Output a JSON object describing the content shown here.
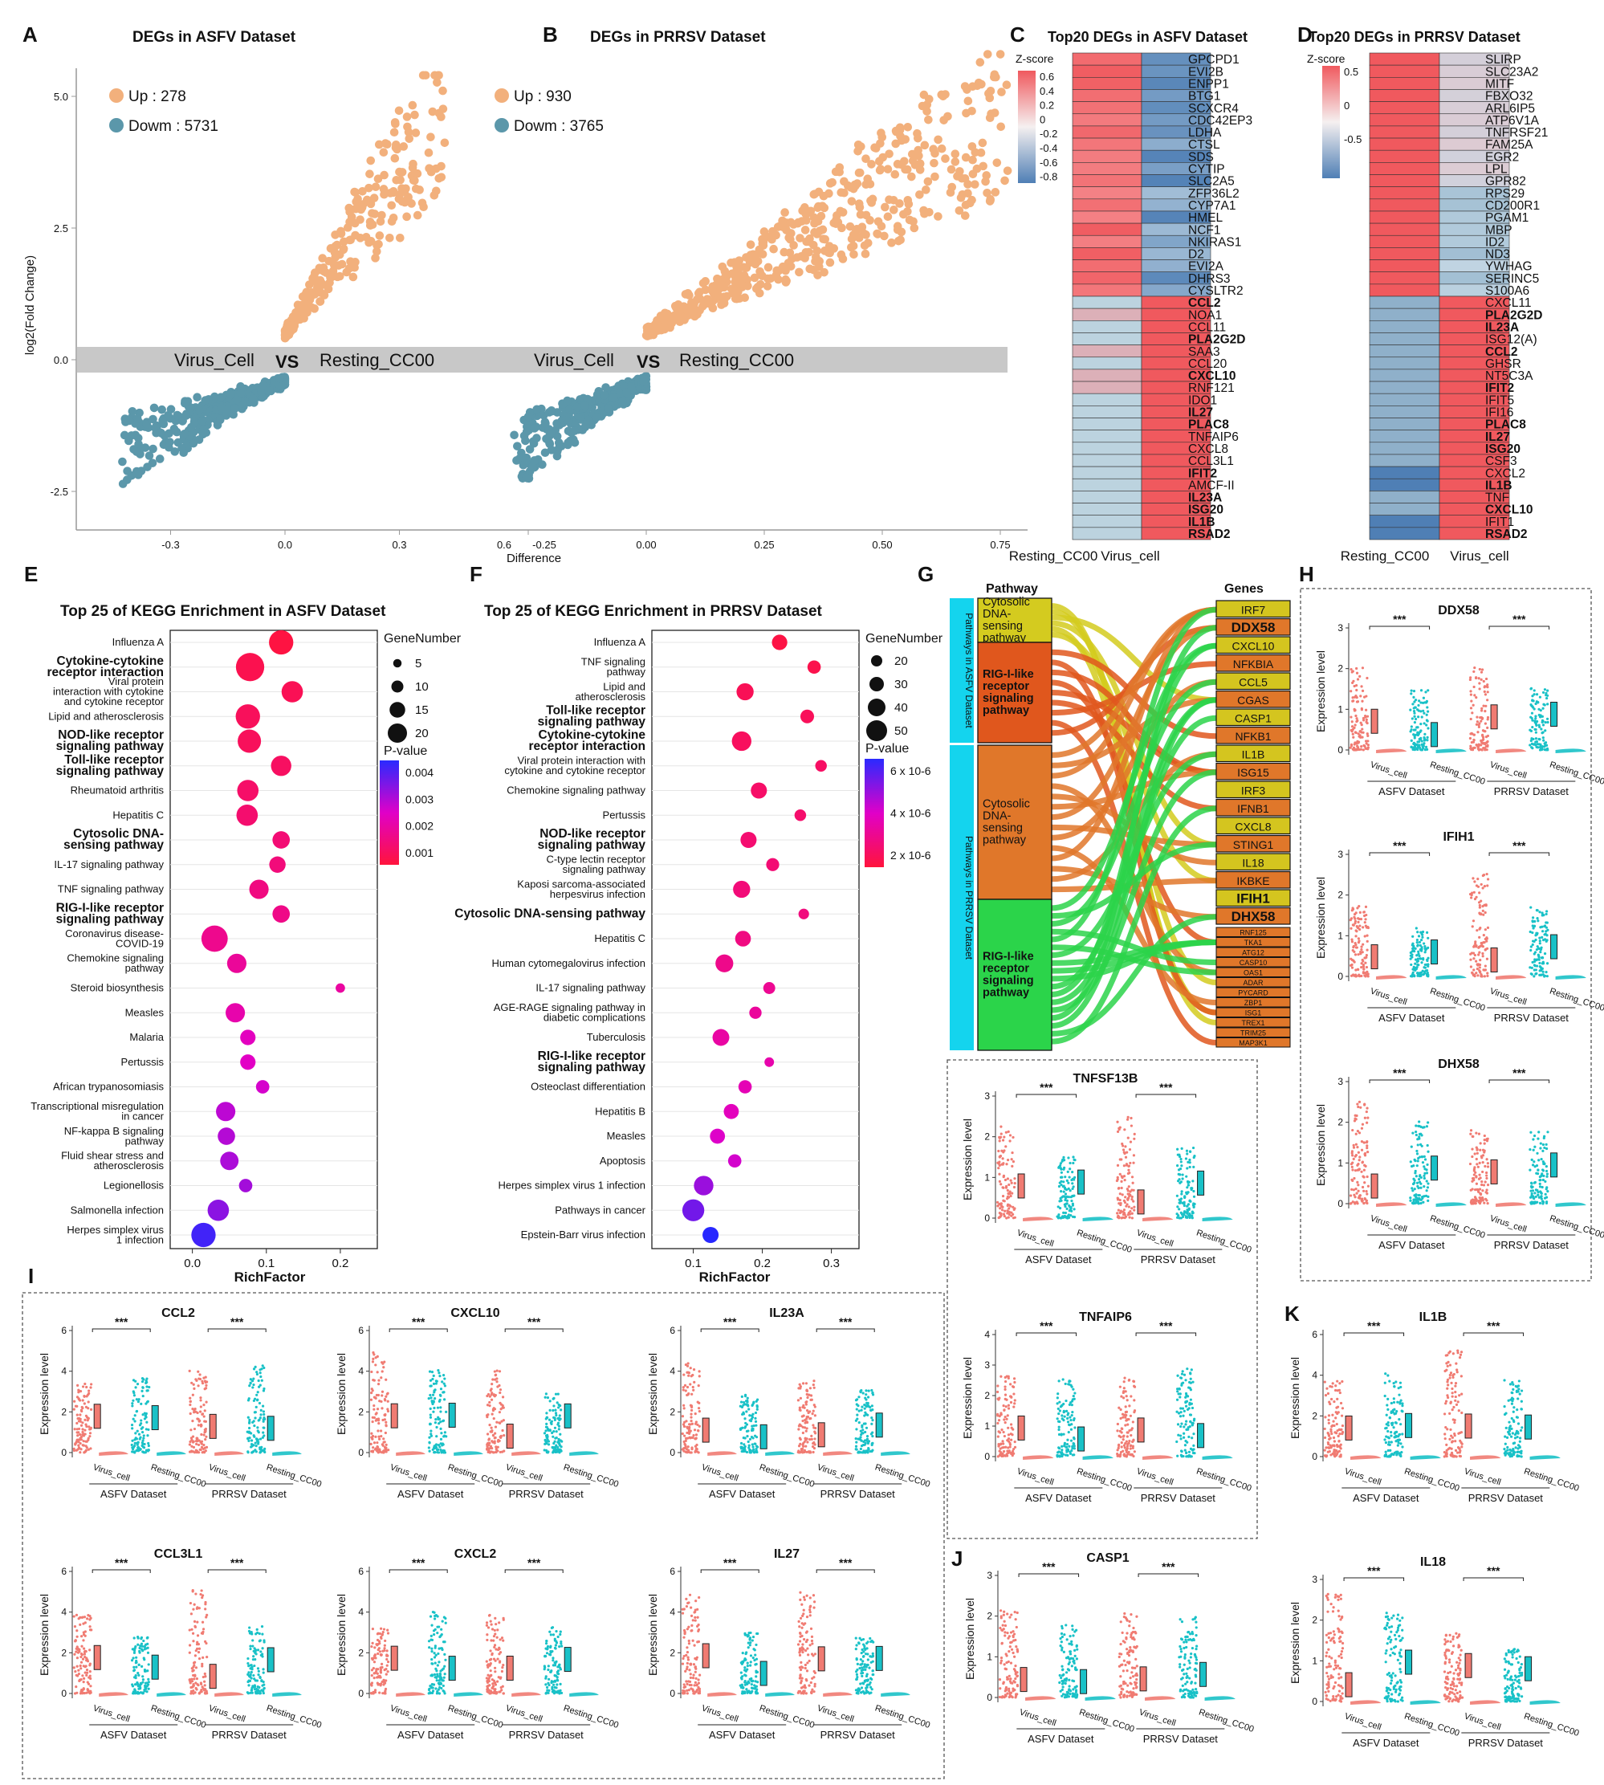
{
  "panel_letters": [
    "A",
    "B",
    "C",
    "D",
    "E",
    "F",
    "G",
    "H",
    "I",
    "J",
    "K"
  ],
  "panelA": {
    "title": "DEGs in ASFV Dataset",
    "legend": [
      {
        "label": "Up : 278",
        "color": "#f2b07c"
      },
      {
        "label": "Dowm : 5731",
        "color": "#5b97aa"
      }
    ],
    "ylabel": "log2(Fold Change)",
    "yticks": [
      "5.0",
      "2.5",
      "0.0",
      "-2.5"
    ],
    "xticks": [
      "-0.3",
      "0.0",
      "0.3",
      "0.6"
    ],
    "band": [
      "Virus_Cell",
      "VS",
      "Resting_CC00"
    ]
  },
  "panelB": {
    "title": "DEGs in PRRSV Dataset",
    "legend": [
      {
        "label": "Up : 930",
        "color": "#f2b07c"
      },
      {
        "label": "Dowm : 3765",
        "color": "#5b97aa"
      }
    ],
    "xticks": [
      "-0.25",
      "0.00",
      "0.25",
      "0.50",
      "0.75"
    ],
    "xlabel": "Difference",
    "band": [
      "Virus_Cell",
      "VS",
      "Resting_CC00"
    ]
  },
  "panelC": {
    "title": "Top20 DEGs in ASFV Dataset",
    "zlabel": "Z-score",
    "zticks": [
      "0.6",
      "0.4",
      "0.2",
      "0",
      "-0.2",
      "-0.4",
      "-0.6",
      "-0.8"
    ],
    "genes": [
      "GPCPD1",
      "EVI2B",
      "ENPP1",
      "BTG1",
      "SCXCR4",
      "CDC42EP3",
      "LDHA",
      "CTSL",
      "SDS",
      "CYTIP",
      "SLC2A5",
      "ZFP36L2",
      "CYP7A1",
      "HMEL",
      "NCF1",
      "NKIRAS1",
      "D2",
      "EVI2A",
      "DHRS3",
      "CYSLTR2",
      "CCL2",
      "NOA1",
      "CCL11",
      "PLA2G2D",
      "SAA3",
      "CCL20",
      "CXCL10",
      "RNF121",
      "IDO1",
      "IL27",
      "PLAC8",
      "TNFAIP6",
      "CXCL8",
      "CCL3L1",
      "IFIT2",
      "AMCF-II",
      "IL23A",
      "ISG20",
      "IL1B",
      "RSAD2"
    ],
    "bold_genes": [
      "CCL2",
      "PLA2G2D",
      "CXCL10",
      "IL27",
      "PLAC8",
      "IFIT2",
      "IL23A",
      "ISG20",
      "IL1B",
      "RSAD2"
    ],
    "columns": [
      "Resting_CC00",
      "Virus_cell"
    ]
  },
  "panelD": {
    "title": "Top20 DEGs in PRRSV Dataset",
    "zlabel": "Z-score",
    "zticks": [
      "0.5",
      "0",
      "-0.5"
    ],
    "genes": [
      "SLIRP",
      "SLC23A2",
      "MITF",
      "FBXO32",
      "ARL6IP5",
      "ATP6V1A",
      "TNFRSF21",
      "FAM25A",
      "EGR2",
      "LPL",
      "GPR82",
      "RPS29",
      "CD200R1",
      "PGAM1",
      "MBP",
      "ID2",
      "ND3",
      "YWHAG",
      "SERINC5",
      "S100A6",
      "CXCL11",
      "PLA2G2D",
      "IL23A",
      "ISG12(A)",
      "CCL2",
      "GHSR",
      "NT5C3A",
      "IFIT2",
      "IFIT5",
      "IFI16",
      "PLAC8",
      "IL27",
      "ISG20",
      "CSF3",
      "CXCL2",
      "IL1B",
      "TNF",
      "CXCL10",
      "IFIT1",
      "RSAD2"
    ],
    "bold_genes": [
      "PLA2G2D",
      "IL23A",
      "CCL2",
      "IFIT2",
      "PLAC8",
      "IL27",
      "ISG20",
      "IL1B",
      "CXCL10",
      "RSAD2"
    ],
    "columns": [
      "Resting_CC00",
      "Virus_cell"
    ]
  },
  "panelE": {
    "title": "Top 25 of KEGG Enrichment in  ASFV Dataset",
    "xlabel": "RichFactor",
    "xticks": [
      "0.0",
      "0.1",
      "0.2"
    ],
    "size_title": "GeneNumber",
    "sizes": [
      "5",
      "10",
      "15",
      "20"
    ],
    "p_title": "P-value",
    "p_ticks": [
      "0.004",
      "0.003",
      "0.002",
      "0.001"
    ]
  },
  "panelF": {
    "title": "Top 25 of KEGG Enrichment in  PRRSV Dataset",
    "xlabel": "RichFactor",
    "xticks": [
      "0.1",
      "0.2",
      "0.3"
    ],
    "size_title": "GeneNumber",
    "sizes": [
      "20",
      "30",
      "40",
      "50"
    ],
    "p_title": "P-value",
    "p_ticks": [
      "6 x 10-6",
      "4 x 10-6",
      "2 x 10-6"
    ]
  },
  "chart_data": [
    {
      "type": "scatter",
      "title": "Top 25 of KEGG Enrichment in  ASFV Dataset",
      "xlabel": "RichFactor",
      "xlim": [
        -0.03,
        0.25
      ],
      "categories": [
        {
          "label": "Influenza A",
          "bold": false,
          "x": 0.12,
          "genes": 18,
          "p": 0.0001
        },
        {
          "label": "Cytokine-cytokine|receptor interaction",
          "bold": true,
          "x": 0.078,
          "genes": 22,
          "p": 0.0003
        },
        {
          "label": "Viral protein|interaction with cytokine|and cytokine receptor",
          "bold": false,
          "x": 0.135,
          "genes": 15,
          "p": 0.0004
        },
        {
          "label": "Lipid and atherosclerosis",
          "bold": false,
          "x": 0.075,
          "genes": 18,
          "p": 0.0005
        },
        {
          "label": "NOD-like receptor|signaling pathway",
          "bold": true,
          "x": 0.077,
          "genes": 17,
          "p": 0.0005
        },
        {
          "label": "Toll-like receptor|signaling pathway",
          "bold": true,
          "x": 0.12,
          "genes": 14,
          "p": 0.0006
        },
        {
          "label": "Rheumatoid arthritis",
          "bold": false,
          "x": 0.075,
          "genes": 15,
          "p": 0.0007
        },
        {
          "label": "Hepatitis C",
          "bold": false,
          "x": 0.074,
          "genes": 15,
          "p": 0.0008
        },
        {
          "label": "Cytosolic DNA-|sensing pathway",
          "bold": true,
          "x": 0.12,
          "genes": 11,
          "p": 0.0009
        },
        {
          "label": "IL-17 signaling pathway",
          "bold": false,
          "x": 0.115,
          "genes": 10,
          "p": 0.001
        },
        {
          "label": "TNF signaling pathway",
          "bold": false,
          "x": 0.09,
          "genes": 13,
          "p": 0.0011
        },
        {
          "label": "RIG-I-like receptor|signaling pathway",
          "bold": true,
          "x": 0.12,
          "genes": 11,
          "p": 0.0012
        },
        {
          "label": "Coronavirus disease-|COVID-19",
          "bold": false,
          "x": 0.03,
          "genes": 20,
          "p": 0.0013
        },
        {
          "label": "Chemokine signaling|pathway",
          "bold": false,
          "x": 0.06,
          "genes": 13,
          "p": 0.0015
        },
        {
          "label": "Steroid biosynthesis",
          "bold": false,
          "x": 0.2,
          "genes": 3,
          "p": 0.0016
        },
        {
          "label": "Measles",
          "bold": false,
          "x": 0.058,
          "genes": 13,
          "p": 0.0018
        },
        {
          "label": "Malaria",
          "bold": false,
          "x": 0.075,
          "genes": 9,
          "p": 0.0021
        },
        {
          "label": "Pertussis",
          "bold": false,
          "x": 0.075,
          "genes": 9,
          "p": 0.0022
        },
        {
          "label": "African trypanosomiasis",
          "bold": false,
          "x": 0.095,
          "genes": 7,
          "p": 0.0024
        },
        {
          "label": "Transcriptional misregulation|in cancer",
          "bold": false,
          "x": 0.045,
          "genes": 13,
          "p": 0.0027
        },
        {
          "label": "NF-kappa B signaling|pathway",
          "bold": false,
          "x": 0.046,
          "genes": 11,
          "p": 0.0028
        },
        {
          "label": "Fluid shear stress and|atherosclerosis",
          "bold": false,
          "x": 0.05,
          "genes": 12,
          "p": 0.0029
        },
        {
          "label": "Legionellosis",
          "bold": false,
          "x": 0.072,
          "genes": 7,
          "p": 0.003
        },
        {
          "label": "Salmonella infection",
          "bold": false,
          "x": 0.035,
          "genes": 15,
          "p": 0.0033
        },
        {
          "label": "Herpes simplex virus|1 infection",
          "bold": false,
          "x": 0.015,
          "genes": 18,
          "p": 0.0042
        }
      ]
    },
    {
      "type": "scatter",
      "title": "Top 25 of KEGG Enrichment in  PRRSV Dataset",
      "xlabel": "RichFactor",
      "xlim": [
        0.04,
        0.34
      ],
      "categories": [
        {
          "label": "Influenza A",
          "bold": false,
          "x": 0.225,
          "genes": 33,
          "p": 2e-07
        },
        {
          "label": "TNF signaling|pathway",
          "bold": false,
          "x": 0.275,
          "genes": 27,
          "p": 4e-07
        },
        {
          "label": "Lipid and|atherosclerosis",
          "bold": false,
          "x": 0.175,
          "genes": 38,
          "p": 6e-07
        },
        {
          "label": "Toll-like receptor|signaling pathway",
          "bold": true,
          "x": 0.265,
          "genes": 28,
          "p": 7e-07
        },
        {
          "label": "Cytokine-cytokine|receptor interaction",
          "bold": true,
          "x": 0.17,
          "genes": 45,
          "p": 8e-07
        },
        {
          "label": "Viral protein interaction with|cytokine and cytokine receptor",
          "bold": false,
          "x": 0.285,
          "genes": 22,
          "p": 9e-07
        },
        {
          "label": "Chemokine signaling pathway",
          "bold": false,
          "x": 0.195,
          "genes": 35,
          "p": 1e-06
        },
        {
          "label": "Pertussis",
          "bold": false,
          "x": 0.255,
          "genes": 22,
          "p": 1.1e-06
        },
        {
          "label": "NOD-like receptor|signaling pathway",
          "bold": true,
          "x": 0.18,
          "genes": 35,
          "p": 1.2e-06
        },
        {
          "label": "C-type lectin receptor|signaling pathway",
          "bold": false,
          "x": 0.215,
          "genes": 26,
          "p": 1.3e-06
        },
        {
          "label": "Kaposi sarcoma-associated|herpesvirus infection",
          "bold": false,
          "x": 0.17,
          "genes": 38,
          "p": 1.4e-06
        },
        {
          "label": "Cytosolic DNA-sensing pathway",
          "bold": true,
          "x": 0.26,
          "genes": 19,
          "p": 1.5e-06
        },
        {
          "label": "Hepatitis C",
          "bold": false,
          "x": 0.172,
          "genes": 34,
          "p": 1.6e-06
        },
        {
          "label": "Human cytomegalovirus infection",
          "bold": false,
          "x": 0.145,
          "genes": 40,
          "p": 1.8e-06
        },
        {
          "label": "IL-17 signaling pathway",
          "bold": false,
          "x": 0.21,
          "genes": 23,
          "p": 2e-06
        },
        {
          "label": "AGE-RAGE signaling pathway in|diabetic complications",
          "bold": false,
          "x": 0.19,
          "genes": 24,
          "p": 2.2e-06
        },
        {
          "label": "Tuberculosis",
          "bold": false,
          "x": 0.14,
          "genes": 37,
          "p": 2.4e-06
        },
        {
          "label": "RIG-I-like receptor|signaling pathway",
          "bold": true,
          "x": 0.21,
          "genes": 16,
          "p": 2.6e-06
        },
        {
          "label": "Osteoclast differentiation",
          "bold": false,
          "x": 0.175,
          "genes": 27,
          "p": 2.8e-06
        },
        {
          "label": "Hepatitis B",
          "bold": false,
          "x": 0.155,
          "genes": 32,
          "p": 3e-06
        },
        {
          "label": "Measles",
          "bold": false,
          "x": 0.135,
          "genes": 32,
          "p": 3.3e-06
        },
        {
          "label": "Apoptosis",
          "bold": false,
          "x": 0.16,
          "genes": 27,
          "p": 3.5e-06
        },
        {
          "label": "Herpes simplex virus 1 infection",
          "bold": false,
          "x": 0.115,
          "genes": 45,
          "p": 4.5e-06
        },
        {
          "label": "Pathways in cancer",
          "bold": false,
          "x": 0.1,
          "genes": 52,
          "p": 5.2e-06
        },
        {
          "label": "Epstein-Barr virus infection",
          "bold": false,
          "x": 0.125,
          "genes": 35,
          "p": 6.5e-06
        }
      ]
    }
  ],
  "panelG": {
    "col_pathway": "Pathway",
    "col_genes": "Genes",
    "side_asfv": "Pathways in ASFV Dataset",
    "side_prrsv": "Pathways in PRRSV Dataset",
    "pathways": [
      {
        "label": "Cytosolic|DNA-|sensing|pathway",
        "bold": false,
        "color": "#d4cb1f"
      },
      {
        "label": "RIG-I-like|receptor|signaling|pathway",
        "bold": true,
        "color": "#e0571d"
      },
      {
        "label": "Cytosolic|DNA-|sensing|pathway",
        "bold": false,
        "color": "#e0772a"
      },
      {
        "label": "RIG-I-like|receptor|signaling|pathway",
        "bold": true,
        "color": "#2bd44a"
      }
    ],
    "genes_large": [
      "IRF7",
      "DDX58",
      "CXCL10",
      "NFKBIA",
      "CCL5",
      "CGAS",
      "CASP1",
      "NFKB1",
      "IL1B",
      "ISG15",
      "IRF3",
      "IFNB1",
      "CXCL8",
      "STING1",
      "IL18",
      "IKBKE",
      "IFIH1",
      "DHX58"
    ],
    "genes_small": [
      "RNF125",
      "TKA1",
      "ATG12",
      "CASP10",
      "OAS1",
      "ADAR",
      "PYCARD",
      "ZBP1",
      "ISG1",
      "TREX1",
      "TRIM25",
      "MAP3K1"
    ]
  },
  "violins": {
    "xcats": [
      "Virus_cell",
      "Resting_CC00"
    ],
    "datasets": [
      "ASFV Dataset",
      "PRRSV Dataset"
    ],
    "ylabel": "Expression level",
    "sig": "***",
    "panels": [
      {
        "gene": "DDX58",
        "ymax": 3
      },
      {
        "gene": "IFIH1",
        "ymax": 3
      },
      {
        "gene": "DHX58",
        "ymax": 3
      },
      {
        "gene": "TNFSF13B",
        "ymax": 3
      },
      {
        "gene": "TNFAIP6",
        "ymax": 4
      },
      {
        "gene": "CCL2",
        "ymax": 6
      },
      {
        "gene": "CXCL10",
        "ymax": 6
      },
      {
        "gene": "IL23A",
        "ymax": 6
      },
      {
        "gene": "CCL3L1",
        "ymax": 6
      },
      {
        "gene": "CXCL2",
        "ymax": 6
      },
      {
        "gene": "IL27",
        "ymax": 6
      },
      {
        "gene": "CASP1",
        "ymax": 3
      },
      {
        "gene": "IL1B",
        "ymax": 6
      },
      {
        "gene": "IL18",
        "ymax": 3
      }
    ]
  },
  "colors": {
    "up": "#f2b07c",
    "down": "#5b97aa",
    "virus": "#f07b72",
    "resting": "#19c1c7",
    "heat_hi": "#f0595e",
    "heat_lo": "#4f7fb5",
    "cyan": "#14d4ee"
  }
}
